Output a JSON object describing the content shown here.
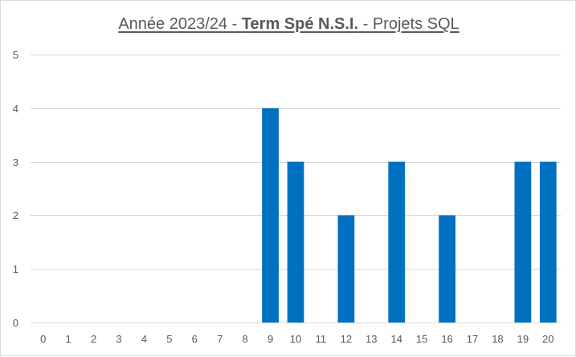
{
  "chart_data": {
    "type": "bar",
    "title_parts": [
      "Année 2023/24 - ",
      "Term Spé N.S.I.",
      " - Projets SQL"
    ],
    "xlabel": "",
    "ylabel": "",
    "categories": [
      "0",
      "1",
      "2",
      "3",
      "4",
      "5",
      "6",
      "7",
      "8",
      "9",
      "10",
      "11",
      "12",
      "13",
      "14",
      "15",
      "16",
      "17",
      "18",
      "19",
      "20"
    ],
    "values": [
      0,
      0,
      0,
      0,
      0,
      0,
      0,
      0,
      0,
      4,
      3,
      0,
      2,
      0,
      3,
      0,
      2,
      0,
      0,
      3,
      3
    ],
    "ylim": [
      0,
      5
    ],
    "yticks": [
      "0",
      "1",
      "2",
      "3",
      "4",
      "5"
    ],
    "grid": true,
    "legend": "none",
    "bar_color": "#0070c0",
    "grid_color": "#d9d9d9"
  }
}
